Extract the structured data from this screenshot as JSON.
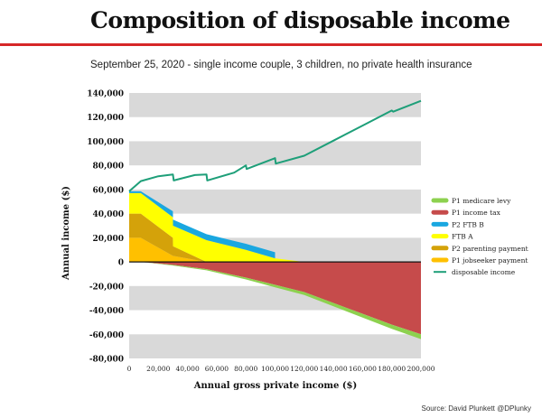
{
  "header": {
    "title": "Composition of disposable income",
    "subtitle": "September 25, 2020 - single income couple, 3 children, no private health insurance",
    "source": "Source: David Plunkett @DPlunky"
  },
  "colors": {
    "medicare_levy": "#8dd14f",
    "income_tax": "#c64b4b",
    "ftb_b": "#1aa7e0",
    "ftb_a": "#ffff00",
    "parenting_payment": "#d4a20a",
    "jobseeker_payment": "#ffc000",
    "disposable_income": "#1e9f79",
    "band": "#d9d9d9"
  },
  "chart_data": {
    "type": "area",
    "xlabel": "Annual gross private income ($)",
    "ylabel": "Annual income ($)",
    "xlim": [
      0,
      200000
    ],
    "ylim": [
      -80000,
      140000
    ],
    "x_ticks": [
      0,
      20000,
      40000,
      60000,
      80000,
      100000,
      120000,
      140000,
      160000,
      180000,
      200000
    ],
    "x_tick_labels": [
      "0",
      "20,000",
      "40,000",
      "60,000",
      "80,000",
      "100,000",
      "120,000",
      "140,000",
      "160,000",
      "180,000",
      "200,000"
    ],
    "y_ticks": [
      -80000,
      -60000,
      -40000,
      -20000,
      0,
      20000,
      40000,
      60000,
      80000,
      100000,
      120000,
      140000
    ],
    "y_tick_labels": [
      "-80,000",
      "-60,000",
      "-40,000",
      "-20,000",
      "0",
      "20,000",
      "40,000",
      "60,000",
      "80,000",
      "100,000",
      "120,000",
      "140,000"
    ],
    "legend": [
      {
        "key": "medicare_levy",
        "label": "P1 medicare levy",
        "marker": "bar"
      },
      {
        "key": "income_tax",
        "label": "P1 income tax",
        "marker": "bar"
      },
      {
        "key": "ftb_b",
        "label": "P2 FTB B",
        "marker": "bar"
      },
      {
        "key": "ftb_a",
        "label": "FTB A",
        "marker": "bar"
      },
      {
        "key": "parenting_payment",
        "label": "P2 parenting payment",
        "marker": "bar"
      },
      {
        "key": "jobseeker_payment",
        "label": "P1 jobseeker payment",
        "marker": "bar"
      },
      {
        "key": "disposable_income",
        "label": "disposable income",
        "marker": "line"
      }
    ],
    "x": [
      0,
      8000,
      30000,
      30001,
      53000,
      53001,
      80000,
      80001,
      100000,
      100001,
      120000,
      180000,
      200000
    ],
    "positive_series": [
      {
        "key": "jobseeker_payment",
        "name": "P1 jobseeker payment",
        "values": [
          20000,
          20000,
          5000,
          5000,
          0,
          0,
          0,
          0,
          0,
          0,
          0,
          0,
          0
        ]
      },
      {
        "key": "parenting_payment",
        "name": "P2 parenting payment",
        "values": [
          20000,
          20000,
          15000,
          8000,
          0,
          0,
          0,
          0,
          0,
          0,
          0,
          0,
          0
        ]
      },
      {
        "key": "ftb_a",
        "name": "FTB A",
        "values": [
          17000,
          17000,
          17000,
          17000,
          18000,
          18000,
          10000,
          10000,
          3000,
          3000,
          0,
          0,
          0
        ]
      },
      {
        "key": "ftb_b",
        "name": "P2 FTB B",
        "values": [
          1500,
          1500,
          5000,
          5000,
          5000,
          5000,
          5000,
          5000,
          5000,
          0,
          0,
          0,
          0
        ]
      }
    ],
    "negative_series": [
      {
        "key": "income_tax",
        "name": "P1 income tax",
        "values": [
          0,
          0,
          -2500,
          -2500,
          -6000,
          -6000,
          -13000,
          -13000,
          -19000,
          -19000,
          -25000,
          -52000,
          -60000
        ]
      },
      {
        "key": "medicare_levy",
        "name": "P1 medicare levy",
        "values": [
          0,
          0,
          -500,
          -500,
          -1000,
          -1000,
          -1500,
          -1500,
          -2000,
          -2000,
          -2500,
          -3500,
          -4000
        ]
      }
    ],
    "disposable_income": {
      "x": [
        0,
        8000,
        20000,
        30000,
        30500,
        45000,
        53000,
        53500,
        72000,
        80000,
        80500,
        100000,
        100500,
        120000,
        140000,
        160000,
        180000,
        181000,
        200000
      ],
      "values": [
        58500,
        67000,
        71000,
        72500,
        67500,
        72000,
        72500,
        67500,
        74000,
        80000,
        77000,
        86000,
        81500,
        88000,
        100500,
        113000,
        125500,
        124500,
        133500
      ]
    }
  }
}
